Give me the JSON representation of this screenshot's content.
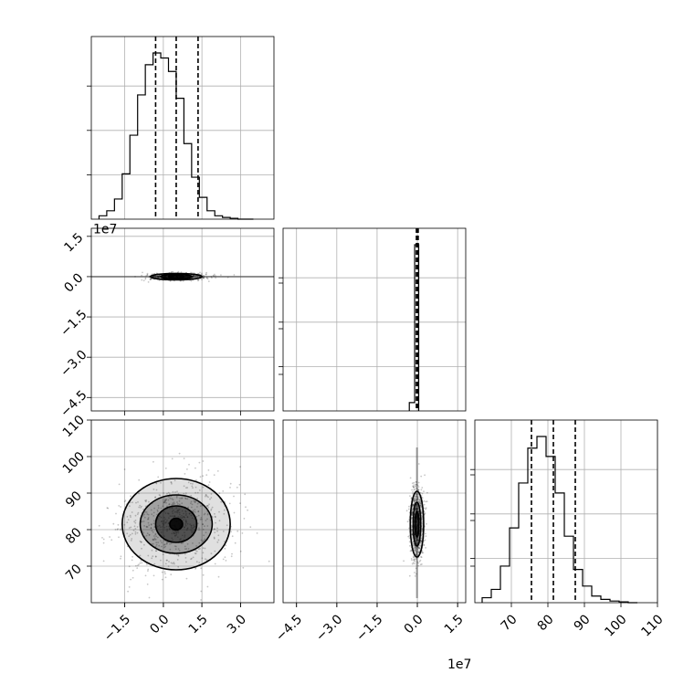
{
  "chart_data": {
    "type": "corner",
    "grid": true,
    "offset_labels": {
      "p0_x": "1e7",
      "p1_x": "1e7",
      "p1_y": "1e7"
    },
    "parameters": [
      {
        "axis_range": [
          -28000000.0,
          43000000.0
        ],
        "ticks": [
          {
            "value": -15000000.0,
            "label": "−1.5"
          },
          {
            "value": 0,
            "label": "0.0"
          },
          {
            "value": 15000000.0,
            "label": "1.5"
          },
          {
            "value": 30000000.0,
            "label": "3.0"
          }
        ],
        "quantiles": [
          -3000000.0,
          5000000.0,
          13500000.0
        ],
        "histogram": {
          "bin_edges": [
            -25000000.0,
            -22000000.0,
            -19000000.0,
            -16000000.0,
            -13000000.0,
            -10000000.0,
            -7000000.0,
            -4000000.0,
            -1000000.0,
            2000000.0,
            5000000.0,
            8000000.0,
            11000000.0,
            14000000.0,
            17000000.0,
            20000000.0,
            23000000.0,
            26000000.0,
            29000000.0,
            32000000.0,
            35000000.0
          ],
          "counts": [
            0.02,
            0.05,
            0.12,
            0.27,
            0.5,
            0.74,
            0.92,
            0.99,
            0.96,
            0.88,
            0.72,
            0.45,
            0.25,
            0.13,
            0.05,
            0.02,
            0.01,
            0.005,
            0.0,
            0.0
          ]
        }
      },
      {
        "axis_range": [
          -50000000.0,
          18000000.0
        ],
        "ticks": [
          {
            "value": -45000000.0,
            "label": "−4.5"
          },
          {
            "value": -30000000.0,
            "label": "−3.0"
          },
          {
            "value": -15000000.0,
            "label": "−1.5"
          },
          {
            "value": 0,
            "label": "0.0"
          },
          {
            "value": 15000000.0,
            "label": "1.5"
          }
        ],
        "quantiles": [
          -350000.0,
          0.0,
          300000.0
        ],
        "histogram": {
          "bin_edges": [
            -3000000.0,
            -1000000.0,
            500000.0
          ],
          "counts": [
            0.05,
            1.0
          ]
        }
      },
      {
        "axis_range": [
          60,
          110
        ],
        "ticks": [
          {
            "value": 70,
            "label": "70"
          },
          {
            "value": 80,
            "label": "80"
          },
          {
            "value": 90,
            "label": "90"
          },
          {
            "value": 100,
            "label": "100"
          },
          {
            "value": 110,
            "label": "110"
          }
        ],
        "quantiles": [
          75.5,
          81.5,
          87.5
        ],
        "histogram": {
          "bin_edges": [
            62,
            64.5,
            67,
            69.5,
            72,
            74.5,
            77,
            79.5,
            82,
            84.5,
            87,
            89.5,
            92,
            94.5,
            97,
            99.5,
            102,
            104.5
          ],
          "counts": [
            0.03,
            0.08,
            0.22,
            0.45,
            0.72,
            0.93,
            1.0,
            0.88,
            0.66,
            0.4,
            0.2,
            0.1,
            0.04,
            0.02,
            0.01,
            0.005,
            0.0
          ]
        }
      }
    ],
    "pairs": [
      {
        "row": 1,
        "col": 0,
        "center": [
          5000000.0,
          0.0
        ],
        "contours": [
          {
            "rx": 10000000.0,
            "ry": 1200000.0
          },
          {
            "rx": 6000000.0,
            "ry": 800000.0
          },
          {
            "rx": 3000000.0,
            "ry": 500000.0
          }
        ]
      },
      {
        "row": 2,
        "col": 0,
        "center": [
          5000000.0,
          81.5
        ],
        "contours": [
          {
            "rx": 21000000.0,
            "ry": 12.5
          },
          {
            "rx": 14000000.0,
            "ry": 8.0
          },
          {
            "rx": 8000000.0,
            "ry": 5.0
          },
          {
            "rx": 2500000.0,
            "ry": 1.6
          }
        ]
      },
      {
        "row": 2,
        "col": 1,
        "center": [
          -150000.0,
          81.5
        ],
        "contours": [
          {
            "rx": 2500000.0,
            "ry": 9.0
          },
          {
            "rx": 1400000.0,
            "ry": 6.0
          },
          {
            "rx": 700000.0,
            "ry": 3.5
          }
        ]
      }
    ]
  }
}
